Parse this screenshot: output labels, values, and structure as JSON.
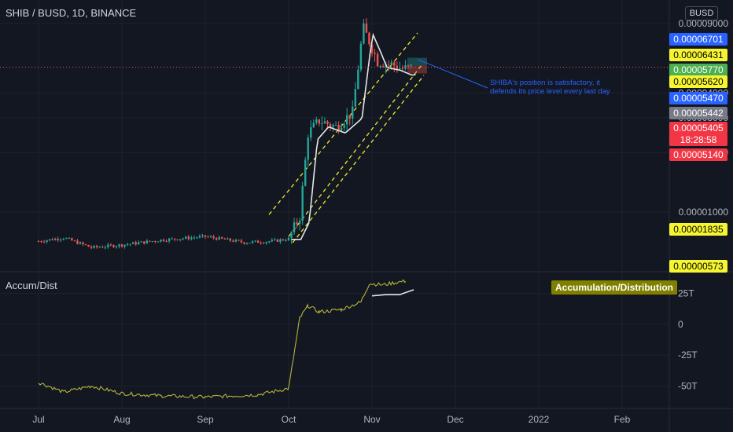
{
  "header": {
    "symbol_title": "SHIB / BUSD, 1D, BINANCE",
    "currency": "BUSD"
  },
  "annotation": {
    "text": "SHIBA's position is satisfactory, it defends its price level every last day"
  },
  "indicator": {
    "label": "Accum/Dist",
    "badge": "Accumulation/Distribution"
  },
  "colors": {
    "background": "#131722",
    "up_candle": "#26a69a",
    "down_candle": "#ef5350",
    "channel": "#f0e830",
    "ad_line": "#b5b53a",
    "note_blue": "#2962ff",
    "current_price_line": "#ef5350"
  },
  "chart_data": {
    "type": "candlestick",
    "x_axis_ticks": [
      "Jul",
      "Aug",
      "Sep",
      "Oct",
      "Nov",
      "Dec",
      "2022",
      "Feb"
    ],
    "price_axis": {
      "ticks": [
        "0.00009000",
        "0.00004000",
        "0.00003000",
        "0.00002000",
        "0.00001000"
      ],
      "scale": "log",
      "range": [
        5.5e-06,
        9e-05
      ]
    },
    "price_labels": [
      {
        "value": "0.00006701",
        "color": "#2962ff",
        "text_color": "#ffffff"
      },
      {
        "value": "0.00006431",
        "color": "#f5f531",
        "text_color": "#000000"
      },
      {
        "value": "0.00005770",
        "color": "#4caf50",
        "text_color": "#ffffff"
      },
      {
        "value": "0.00005620",
        "color": "#f5f531",
        "text_color": "#000000"
      },
      {
        "value": "0.00005470",
        "color": "#2962ff",
        "text_color": "#ffffff"
      },
      {
        "value": "0.00005442",
        "color": "#787b86",
        "text_color": "#ffffff"
      },
      {
        "value": "0.00005405",
        "color": "#f23645",
        "text_color": "#ffffff"
      },
      {
        "value": "18:28:58",
        "color": "#f23645",
        "text_color": "#ffffff"
      },
      {
        "value": "0.00005140",
        "color": "#f23645",
        "text_color": "#ffffff"
      },
      {
        "value": "0.00001835",
        "color": "#f5f531",
        "text_color": "#000000"
      },
      {
        "value": "0.00000573",
        "color": "#f5f531",
        "text_color": "#000000"
      }
    ],
    "indicator_axis": {
      "ticks": [
        "25T",
        "0",
        "-25T",
        "-50T"
      ],
      "range": [
        -65,
        40
      ]
    },
    "price_path": [
      [
        "Jul 01",
        7.1e-06
      ],
      [
        "Jul 10",
        7.4e-06
      ],
      [
        "Jul 20",
        6.6e-06
      ],
      [
        "Aug 01",
        6.8e-06
      ],
      [
        "Aug 15",
        7.2e-06
      ],
      [
        "Sep 01",
        7.5e-06
      ],
      [
        "Sep 15",
        7e-06
      ],
      [
        "Sep 25",
        7.1e-06
      ],
      [
        "Oct 01",
        7.3e-06
      ],
      [
        "Oct 05",
        9.5e-06
      ],
      [
        "Oct 08",
        2.5e-05
      ],
      [
        "Oct 12",
        2.9e-05
      ],
      [
        "Oct 18",
        2.7e-05
      ],
      [
        "Oct 24",
        3.2e-05
      ],
      [
        "Oct 27",
        7e-05
      ],
      [
        "Oct 28",
        8.5e-05
      ],
      [
        "Oct 31",
        6.8e-05
      ],
      [
        "Nov 03",
        5.8e-05
      ],
      [
        "Nov 08",
        5.6e-05
      ],
      [
        "Nov 12",
        5.3e-05
      ],
      [
        "Nov 16",
        5.41e-05
      ]
    ],
    "ad_path": [
      [
        "Jul 01",
        -47
      ],
      [
        "Jul 10",
        -55
      ],
      [
        "Jul 20",
        -50
      ],
      [
        "Aug 01",
        -56
      ],
      [
        "Aug 15",
        -58
      ],
      [
        "Sep 01",
        -59
      ],
      [
        "Sep 20",
        -57
      ],
      [
        "Oct 01",
        -52
      ],
      [
        "Oct 05",
        5
      ],
      [
        "Oct 08",
        15
      ],
      [
        "Oct 12",
        10
      ],
      [
        "Oct 20",
        12
      ],
      [
        "Oct 27",
        18
      ],
      [
        "Oct 30",
        33
      ],
      [
        "Nov 05",
        32
      ],
      [
        "Nov 10",
        34
      ],
      [
        "Nov 13",
        35
      ]
    ],
    "ad_ma_path": [
      [
        "Nov 01",
        23
      ],
      [
        "Nov 06",
        24
      ],
      [
        "Nov 11",
        24
      ],
      [
        "Nov 16",
        28
      ]
    ]
  }
}
